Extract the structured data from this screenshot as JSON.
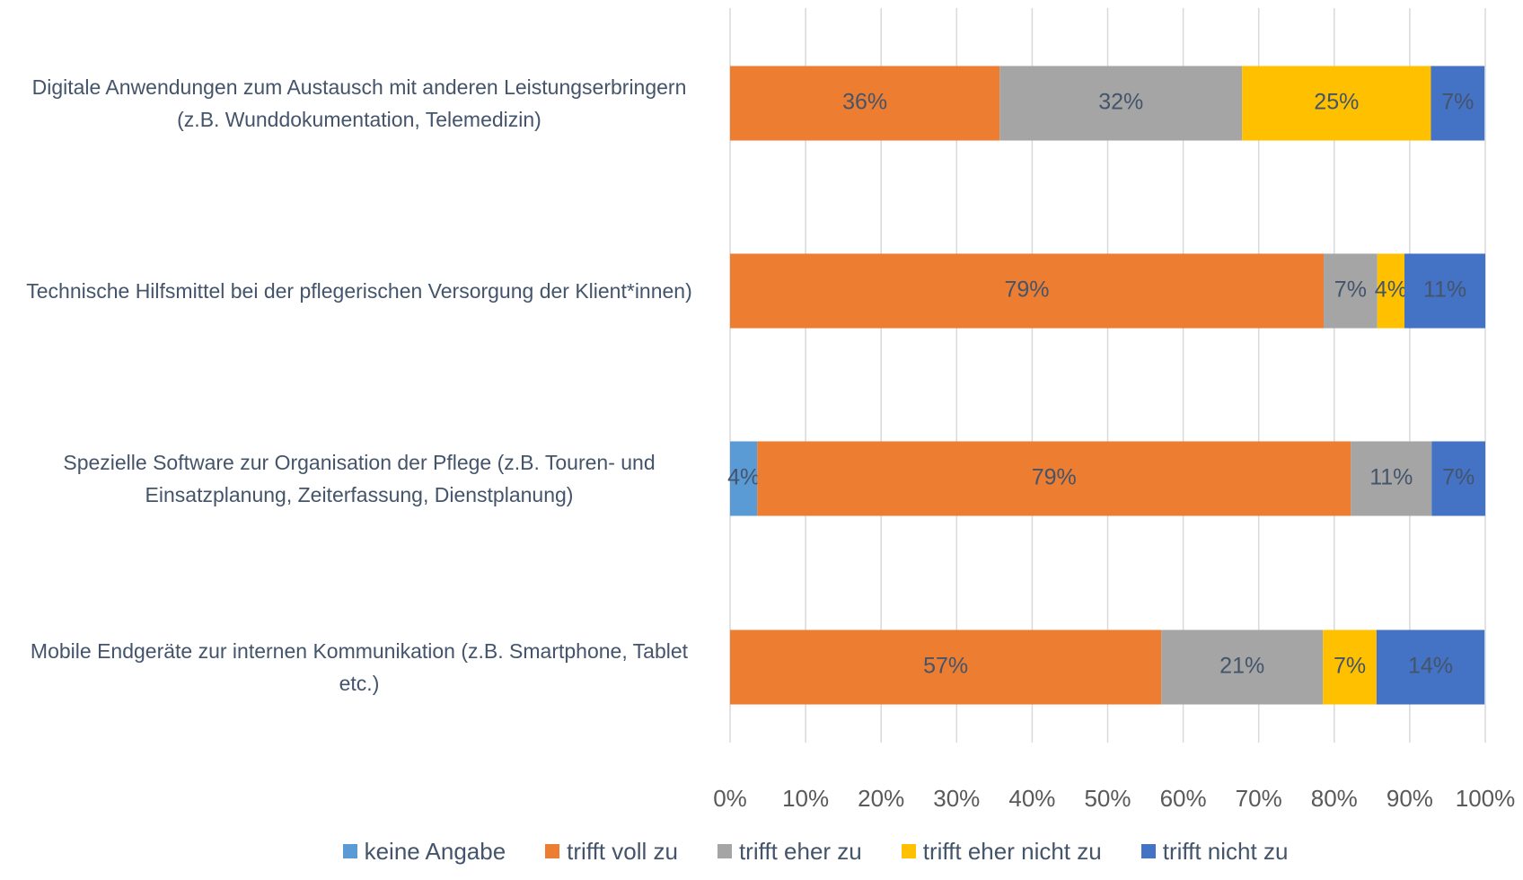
{
  "chart_data": {
    "type": "stacked_barh",
    "categories": [
      "Digitale Anwendungen zum Austausch mit anderen Leistungserbringern (z.B. Wunddokumentation, Telemedizin)",
      "Technische Hilfsmittel bei der pflegerischen Versorgung der Klient*innen)",
      "Spezielle Software zur Organisation der Pflege (z.B. Touren- und Einsatzplanung, Zeiterfassung, Dienstplanung)",
      "Mobile Endgeräte zur internen Kommunikation (z.B. Smartphone, Tablet etc.)"
    ],
    "series": [
      {
        "name": "keine Angabe",
        "color": "#5b9bd5",
        "values": [
          0,
          0,
          3.6,
          0
        ],
        "value_labels": [
          null,
          null,
          "4%",
          null
        ]
      },
      {
        "name": "trifft voll zu",
        "color": "#ed7d31",
        "values": [
          35.7,
          78.6,
          78.6,
          57.1
        ],
        "value_labels": [
          "36%",
          "79%",
          "79%",
          "57%"
        ]
      },
      {
        "name": "trifft eher zu",
        "color": "#a5a5a5",
        "values": [
          32.1,
          7.1,
          10.7,
          21.4
        ],
        "value_labels": [
          "32%",
          "7%",
          "11%",
          "21%"
        ]
      },
      {
        "name": "trifft eher nicht zu",
        "color": "#ffc000",
        "values": [
          25.0,
          3.6,
          0,
          7.1
        ],
        "value_labels": [
          "25%",
          "4%",
          null,
          "7%"
        ]
      },
      {
        "name": "trifft nicht zu",
        "color": "#4472c4",
        "values": [
          7.1,
          10.7,
          7.1,
          14.3
        ],
        "value_labels": [
          "7%",
          "11%",
          "7%",
          "14%"
        ]
      }
    ],
    "xlim": [
      0,
      100
    ],
    "xticks": [
      {
        "value": 0,
        "label": "0%"
      },
      {
        "value": 10,
        "label": "10%"
      },
      {
        "value": 20,
        "label": "20%"
      },
      {
        "value": 30,
        "label": "30%"
      },
      {
        "value": 40,
        "label": "40%"
      },
      {
        "value": 50,
        "label": "50%"
      },
      {
        "value": 60,
        "label": "60%"
      },
      {
        "value": 70,
        "label": "70%"
      },
      {
        "value": 80,
        "label": "80%"
      },
      {
        "value": 90,
        "label": "90%"
      },
      {
        "value": 100,
        "label": "100%"
      }
    ],
    "grid": true,
    "legend": "bottom"
  }
}
